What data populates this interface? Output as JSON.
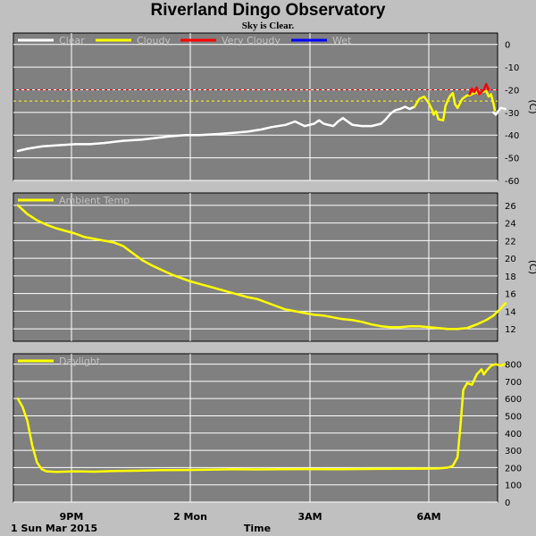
{
  "page": {
    "title": "Riverland Dingo Observatory",
    "subtitle": "Sky is Clear.",
    "date_label": "1 Sun Mar 2015",
    "xlabel": "Time",
    "x_ticks": [
      "9PM",
      "2 Mon",
      "3AM",
      "6AM"
    ]
  },
  "colors": {
    "background": "#c0c0c0",
    "plot_bg": "#808080",
    "grid": "#ffffff",
    "clear": "#ffffff",
    "cloudy": "#ffff00",
    "very_cloudy": "#ff0000",
    "wet": "#0000ff",
    "ref_red": "#ff0000",
    "ref_yellow": "#ffff00"
  },
  "chart_data": [
    {
      "type": "line",
      "panel": "sky",
      "legend": [
        {
          "name": "Clear",
          "color": "#ffffff"
        },
        {
          "name": "Cloudy",
          "color": "#ffff00"
        },
        {
          "name": "Very Cloudy",
          "color": "#ff0000"
        },
        {
          "name": "Wet",
          "color": "#0000ff"
        }
      ],
      "legend_placement": "top-left",
      "ylabel": "(C)",
      "ylim": [
        -60,
        5
      ],
      "yticks": [
        0,
        -10,
        -20,
        -30,
        -40,
        -50,
        -60
      ],
      "xlim": [
        0,
        100
      ],
      "reference_lines": [
        {
          "value": -20,
          "color": "#ff0000"
        },
        {
          "value": -25,
          "color": "#ffff00"
        }
      ],
      "series": [
        {
          "name": "Clear",
          "color": "#ffffff",
          "points": [
            [
              0,
              -47
            ],
            [
              2,
              -46
            ],
            [
              5,
              -45
            ],
            [
              8,
              -44.5
            ],
            [
              12,
              -44
            ],
            [
              15,
              -44
            ],
            [
              18,
              -43.5
            ],
            [
              22,
              -42.5
            ],
            [
              26,
              -42
            ],
            [
              28,
              -41.5
            ],
            [
              30,
              -41
            ],
            [
              32,
              -40.5
            ],
            [
              35,
              -40
            ],
            [
              38,
              -40
            ],
            [
              42,
              -39.5
            ],
            [
              45,
              -39
            ],
            [
              48,
              -38.5
            ],
            [
              51,
              -37.5
            ],
            [
              53,
              -36.5
            ],
            [
              56,
              -35.5
            ],
            [
              58,
              -34
            ],
            [
              60,
              -36
            ],
            [
              62,
              -35
            ],
            [
              63,
              -33.5
            ],
            [
              64,
              -35
            ],
            [
              66,
              -36
            ],
            [
              67,
              -34
            ],
            [
              68,
              -32.5
            ],
            [
              70,
              -35.5
            ],
            [
              72,
              -36
            ],
            [
              74,
              -36
            ],
            [
              76,
              -35
            ],
            [
              77,
              -33
            ],
            [
              78,
              -30.5
            ],
            [
              79,
              -29
            ],
            [
              80,
              -28.5
            ],
            [
              81,
              -27.5
            ],
            [
              82,
              -28.5
            ],
            [
              83,
              -27.5
            ]
          ]
        },
        {
          "name": "Cloudy",
          "color": "#ffff00",
          "points": [
            [
              83,
              -27.5
            ],
            [
              84,
              -24
            ],
            [
              85,
              -23
            ],
            [
              86,
              -26
            ],
            [
              86.7,
              -29
            ],
            [
              87,
              -31
            ],
            [
              87.5,
              -29.5
            ],
            [
              88,
              -33
            ],
            [
              89,
              -33.5
            ],
            [
              89.5,
              -27
            ],
            [
              90,
              -24.5
            ],
            [
              90.5,
              -22.5
            ],
            [
              91,
              -21.5
            ],
            [
              91.5,
              -26.5
            ],
            [
              92,
              -28
            ],
            [
              92.5,
              -26
            ],
            [
              93,
              -24
            ],
            [
              94,
              -22.5
            ],
            [
              94.5,
              -22.5
            ],
            [
              95,
              -22
            ],
            [
              96,
              -21
            ],
            [
              96.5,
              -22
            ],
            [
              97,
              -21
            ],
            [
              98,
              -20.5
            ],
            [
              98.5,
              -23
            ],
            [
              99,
              -22
            ],
            [
              99.5,
              -26
            ],
            [
              99.8,
              -29
            ]
          ]
        },
        {
          "name": "Very Cloudy",
          "color": "#ff0000",
          "points": [
            [
              94.5,
              -22
            ],
            [
              95,
              -19.5
            ],
            [
              95.5,
              -21
            ],
            [
              96,
              -19
            ],
            [
              96.5,
              -22
            ],
            [
              97,
              -21
            ],
            [
              97.5,
              -20
            ],
            [
              98,
              -17.5
            ],
            [
              98.5,
              -20
            ]
          ]
        },
        {
          "name": "Clear",
          "color": "#ffffff",
          "points": [
            [
              99.5,
              -30
            ],
            [
              100,
              -31
            ],
            [
              101,
              -28
            ],
            [
              102,
              -28.5
            ]
          ]
        }
      ]
    },
    {
      "type": "line",
      "panel": "ambient",
      "legend": [
        {
          "name": "Ambient Temp",
          "color": "#ffff00"
        }
      ],
      "legend_placement": "top-left",
      "ylabel": "(C)",
      "ylim": [
        10.6,
        27.4
      ],
      "yticks": [
        26,
        24,
        22,
        20,
        18,
        16,
        14,
        12
      ],
      "xlim": [
        0,
        100
      ],
      "series": [
        {
          "name": "Ambient Temp",
          "color": "#ffff00",
          "points": [
            [
              0,
              26
            ],
            [
              2,
              25
            ],
            [
              4,
              24.3
            ],
            [
              6,
              23.8
            ],
            [
              8,
              23.4
            ],
            [
              10,
              23.1
            ],
            [
              12,
              22.8
            ],
            [
              14,
              22.4
            ],
            [
              16,
              22.2
            ],
            [
              18,
              22
            ],
            [
              20,
              21.8
            ],
            [
              22,
              21.4
            ],
            [
              24,
              20.6
            ],
            [
              26,
              19.8
            ],
            [
              28,
              19.2
            ],
            [
              30,
              18.7
            ],
            [
              32,
              18.2
            ],
            [
              34,
              17.8
            ],
            [
              36,
              17.4
            ],
            [
              38,
              17.1
            ],
            [
              40,
              16.8
            ],
            [
              42,
              16.5
            ],
            [
              44,
              16.2
            ],
            [
              46,
              15.9
            ],
            [
              48,
              15.6
            ],
            [
              50,
              15.4
            ],
            [
              52,
              15
            ],
            [
              54,
              14.6
            ],
            [
              56,
              14.2
            ],
            [
              58,
              14
            ],
            [
              60,
              13.8
            ],
            [
              62,
              13.6
            ],
            [
              64,
              13.5
            ],
            [
              66,
              13.3
            ],
            [
              68,
              13.1
            ],
            [
              70,
              13
            ],
            [
              72,
              12.8
            ],
            [
              74,
              12.5
            ],
            [
              76,
              12.3
            ],
            [
              78,
              12.2
            ],
            [
              80,
              12.2
            ],
            [
              82,
              12.3
            ],
            [
              84,
              12.3
            ],
            [
              86,
              12.2
            ],
            [
              88,
              12.1
            ],
            [
              90,
              12
            ],
            [
              92,
              12
            ],
            [
              94,
              12.1
            ],
            [
              96,
              12.5
            ],
            [
              98,
              13
            ],
            [
              99.5,
              13.5
            ],
            [
              101,
              14.3
            ],
            [
              102,
              14.9
            ]
          ]
        }
      ]
    },
    {
      "type": "line",
      "panel": "daylight",
      "legend": [
        {
          "name": "Daylight",
          "color": "#ffff00"
        }
      ],
      "legend_placement": "top-left",
      "ylim": [
        0,
        860
      ],
      "yticks": [
        800,
        700,
        600,
        500,
        400,
        300,
        200,
        100,
        0
      ],
      "xlim": [
        0,
        100
      ],
      "series": [
        {
          "name": "Daylight",
          "color": "#ffff00",
          "points": [
            [
              0,
              600
            ],
            [
              1,
              550
            ],
            [
              2,
              470
            ],
            [
              3,
              330
            ],
            [
              4,
              230
            ],
            [
              5,
              190
            ],
            [
              6,
              178
            ],
            [
              8,
              175
            ],
            [
              12,
              178
            ],
            [
              16,
              176
            ],
            [
              20,
              180
            ],
            [
              25,
              182
            ],
            [
              30,
              185
            ],
            [
              35,
              186
            ],
            [
              40,
              188
            ],
            [
              45,
              190
            ],
            [
              50,
              189
            ],
            [
              55,
              190
            ],
            [
              60,
              191
            ],
            [
              65,
              190
            ],
            [
              70,
              191
            ],
            [
              75,
              192
            ],
            [
              80,
              193
            ],
            [
              85,
              194
            ],
            [
              88,
              195
            ],
            [
              90,
              200
            ],
            [
              91,
              210
            ],
            [
              92,
              260
            ],
            [
              92.7,
              470
            ],
            [
              93.2,
              650
            ],
            [
              94,
              690
            ],
            [
              95,
              680
            ],
            [
              96,
              740
            ],
            [
              97,
              770
            ],
            [
              97.5,
              740
            ],
            [
              98,
              760
            ],
            [
              99,
              790
            ],
            [
              100,
              800
            ],
            [
              101,
              790
            ],
            [
              102,
              800
            ]
          ]
        }
      ]
    }
  ]
}
